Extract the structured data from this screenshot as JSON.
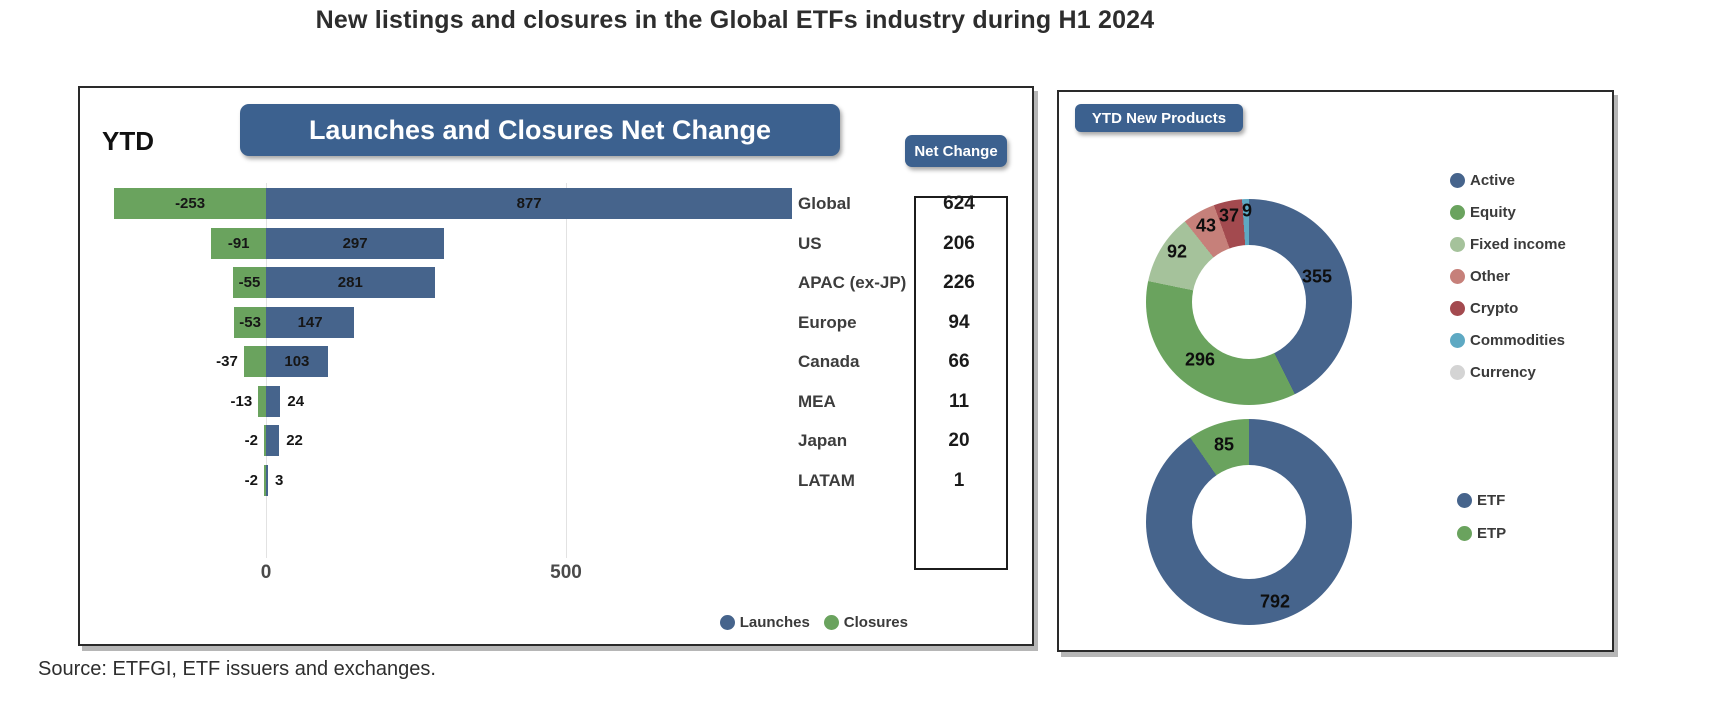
{
  "page": {
    "title": "New listings and closures in the Global ETFs industry during H1 2024",
    "source": "Source: ETFGI, ETF issuers and exchanges."
  },
  "theme": {
    "accent_blue": "#3c618f",
    "launches_blue": "#46648c",
    "closures_green": "#6aa35e",
    "panel_border": "#2a2a2a"
  },
  "chart_data": [
    {
      "type": "bar",
      "orientation": "horizontal",
      "title": "Launches and Closures Net Change",
      "period_label": "YTD",
      "categories": [
        "Global",
        "US",
        "APAC (ex-JP)",
        "Europe",
        "Canada",
        "MEA",
        "Japan",
        "LATAM"
      ],
      "series": [
        {
          "name": "Launches",
          "color": "#46648c",
          "values": [
            877,
            297,
            281,
            147,
            103,
            24,
            22,
            3
          ]
        },
        {
          "name": "Closures",
          "color": "#6aa35e",
          "values": [
            -253,
            -91,
            -55,
            -53,
            -37,
            -13,
            -2,
            -2
          ]
        }
      ],
      "net_change": {
        "header": "Net Change",
        "values": [
          624,
          206,
          226,
          94,
          66,
          11,
          20,
          1
        ]
      },
      "xticks": [
        0,
        500
      ],
      "xlim": [
        -300,
        900
      ],
      "grid": "vertical-light",
      "legend_position": "bottom-right"
    },
    {
      "type": "pie",
      "donut": true,
      "title": "YTD New Products",
      "slices": [
        {
          "label": "Active",
          "value": 355,
          "color": "#46648c"
        },
        {
          "label": "Equity",
          "value": 296,
          "color": "#6aa35e"
        },
        {
          "label": "Fixed income",
          "value": 92,
          "color": "#a5c29b"
        },
        {
          "label": "Other",
          "value": 43,
          "color": "#c6807a"
        },
        {
          "label": "Crypto",
          "value": 37,
          "color": "#a34a4f"
        },
        {
          "label": "Commodities",
          "value": 9,
          "color": "#5ea9c3"
        }
      ],
      "legend": [
        {
          "label": "Active",
          "color": "#46648c"
        },
        {
          "label": "Equity",
          "color": "#6aa35e"
        },
        {
          "label": "Fixed income",
          "color": "#a5c29b"
        },
        {
          "label": "Other",
          "color": "#c6807a"
        },
        {
          "label": "Crypto",
          "color": "#a34a4f"
        },
        {
          "label": "Commodities",
          "color": "#5ea9c3"
        },
        {
          "label": "Currency",
          "color": "#d4d4d4"
        }
      ],
      "legend_position": "right"
    },
    {
      "type": "pie",
      "donut": true,
      "title": "",
      "slices": [
        {
          "label": "ETF",
          "value": 792,
          "color": "#46648c"
        },
        {
          "label": "ETP",
          "value": 85,
          "color": "#6aa35e"
        }
      ],
      "legend": [
        {
          "label": "ETF",
          "color": "#46648c"
        },
        {
          "label": "ETP",
          "color": "#6aa35e"
        }
      ],
      "legend_position": "right"
    }
  ]
}
